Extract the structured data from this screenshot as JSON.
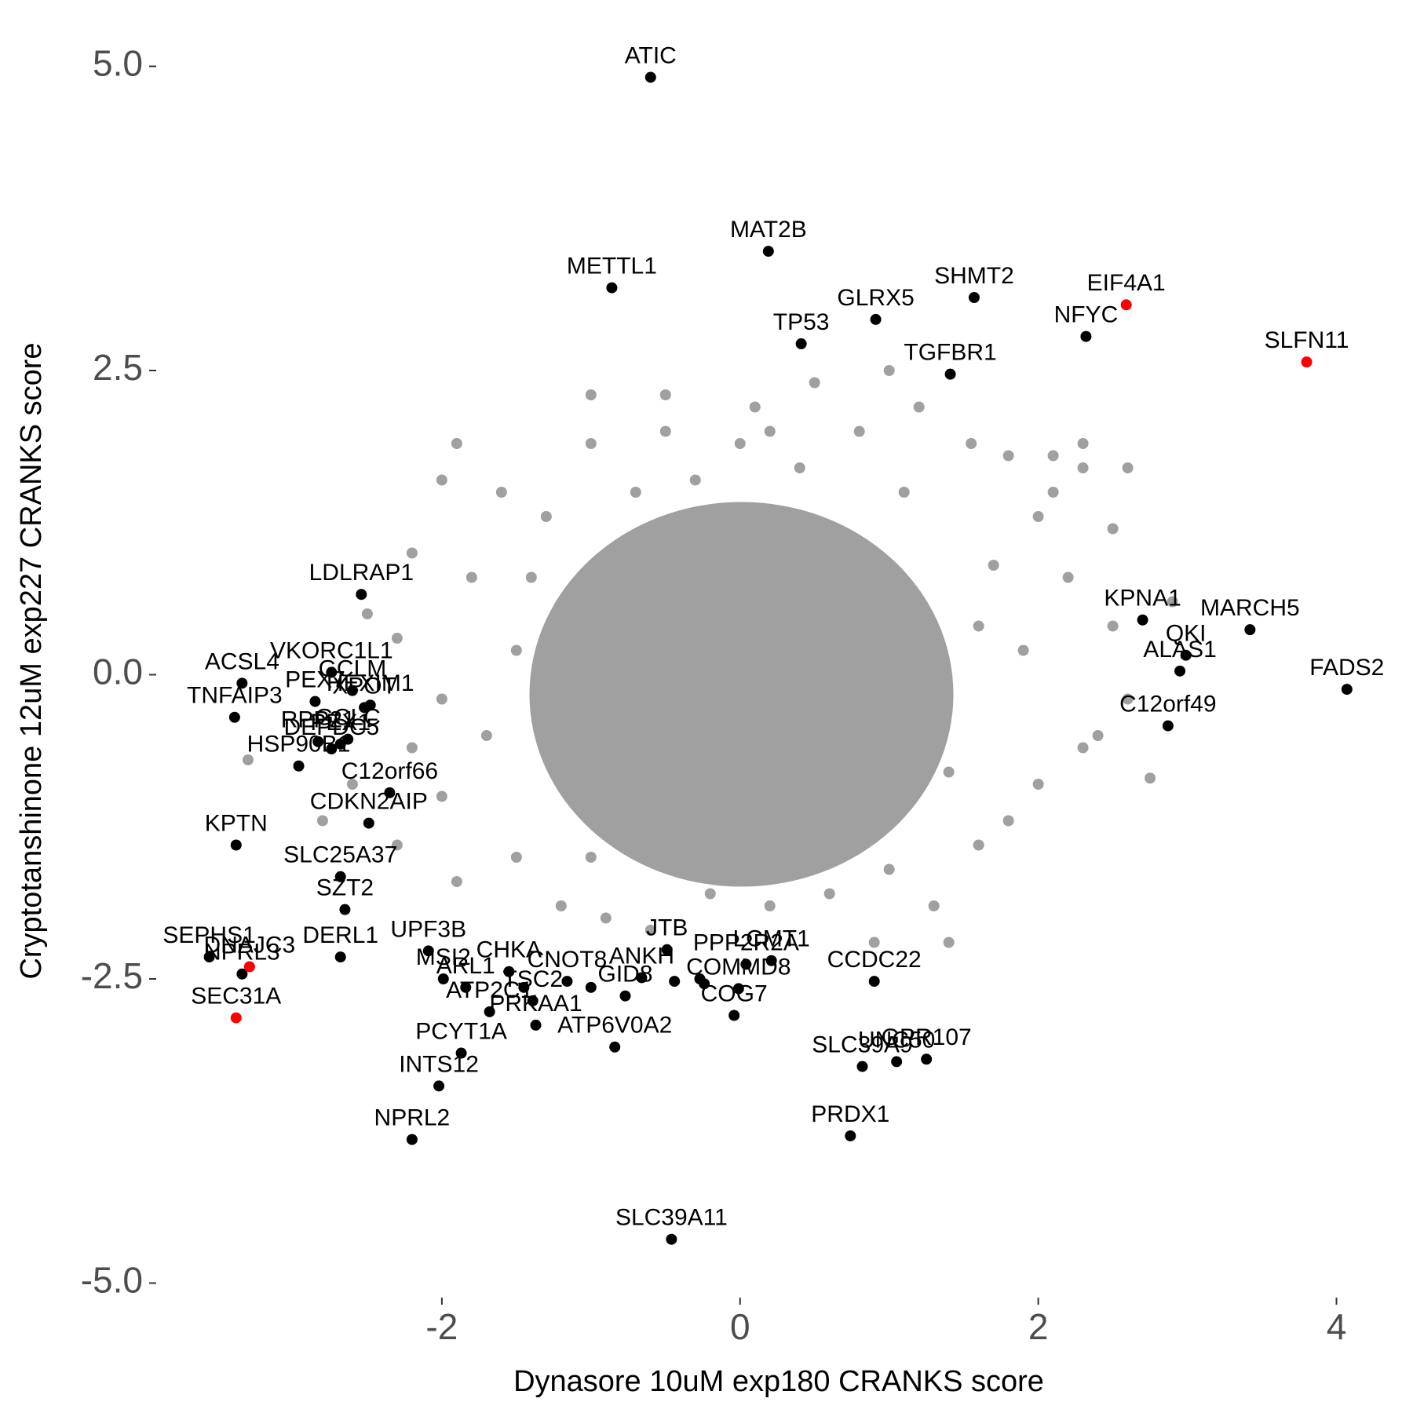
{
  "chart_data": {
    "type": "scatter",
    "x_label": "Dynasore 10uM exp180 CRANKS score",
    "y_label": "Cryptotanshinone 12uM exp227 CRANKS score",
    "xlim": [
      -3.9,
      4.15
    ],
    "ylim": [
      -5.1,
      5.1
    ],
    "xticks": [
      -2,
      0,
      2,
      4
    ],
    "yticks": [
      {
        "value": 5,
        "label": "5.0"
      },
      {
        "value": 2.5,
        "label": "2.5"
      },
      {
        "value": 0,
        "label": "0.0"
      },
      {
        "value": -2.5,
        "label": "-2.5"
      },
      {
        "value": -5,
        "label": "-5.0"
      }
    ],
    "grid": false,
    "series": [
      {
        "color": "#a0a0a0",
        "x": [
          -0.5,
          -1.0,
          -1.9,
          -1.0,
          -0.5,
          0.1,
          0.5,
          0.8,
          1.2,
          1.0,
          1.55,
          1.8,
          2.1,
          2.3,
          2.3,
          2.6,
          2.0,
          2.5,
          2.1,
          -2.0,
          -1.6,
          -1.3,
          -2.2,
          -1.8,
          -2.3,
          -2.5,
          -2.0,
          -2.2,
          -2.6,
          -2.3,
          -1.9,
          -1.5,
          -1.2,
          -0.9,
          -0.6,
          -0.2,
          0.2,
          0.6,
          0.9,
          1.3,
          1.4,
          1.6,
          1.8,
          2.0,
          2.3,
          2.4,
          2.9,
          2.75,
          2.6,
          2.5,
          2.2,
          1.9,
          -3.3,
          -2.8,
          -2.0,
          1.0,
          -1.4,
          1.7,
          0.0,
          -0.3,
          0.4,
          1.1,
          -1.0,
          0.5,
          -0.7,
          1.4,
          -1.7,
          1.6,
          -1.5,
          0.2
        ],
        "values": [
          2.3,
          2.3,
          1.9,
          1.9,
          2.0,
          2.2,
          2.4,
          2.0,
          2.2,
          2.5,
          1.9,
          1.8,
          1.8,
          1.9,
          1.7,
          1.7,
          1.3,
          1.2,
          1.5,
          1.6,
          1.5,
          1.3,
          1.0,
          0.8,
          0.3,
          0.5,
          -0.2,
          -0.6,
          -0.9,
          -1.4,
          -1.7,
          -1.5,
          -1.9,
          -2.0,
          -2.1,
          -1.8,
          -1.9,
          -1.8,
          -2.2,
          -1.9,
          -2.2,
          -1.4,
          -1.2,
          -0.9,
          -0.6,
          -0.5,
          0.6,
          -0.85,
          -0.2,
          0.4,
          0.8,
          0.2,
          -0.7,
          -1.2,
          -1.0,
          -1.6,
          0.8,
          0.9,
          1.9,
          1.6,
          1.7,
          1.5,
          -1.5,
          -1.4,
          1.5,
          -0.8,
          -0.5,
          0.4,
          0.2,
          2.0
        ]
      },
      {
        "color": "#000000",
        "labels": [
          "ATIC",
          "MAT2B",
          "METTL1",
          "GLRX5",
          "SHMT2",
          "NFYC",
          "TP53",
          "TGFBR1",
          "KPNA1",
          "MARCH5",
          "QKI",
          "ALAS1",
          "FADS2",
          "C12orf49",
          "LDLRAP1",
          "GCLM",
          "PEX7",
          "VKORC1L1",
          "ACSL4",
          "XPOT",
          "HEXIM1",
          "TNFAIP3",
          "GCLC",
          "HSP90B1",
          "RPP21",
          "DEPDC5",
          "PEX1",
          "C12orf66",
          "CDKN2AIP",
          "KPTN",
          "SLC25A37",
          "SZT2",
          "SEPHS1",
          "NPRL3",
          "DERL1",
          "UPF3B",
          "MSI2",
          "ARL1",
          "ATP2C1",
          "PCYT1A",
          "INTS12",
          "NPRL2",
          "CHKA",
          "CNOT8",
          "TSC2",
          "PRKAA1",
          "GID8",
          "JTB",
          "ANKH",
          "ATP6V0A2",
          "PPP2R2A",
          "LCMT1",
          "COMMD8",
          "COG7",
          "CCDC22",
          "SLC39A9",
          "GPR107",
          "UNC50",
          "PRDX1",
          "SLC39A11",
          null,
          null,
          null,
          null,
          null
        ],
        "x": [
          -0.6,
          0.19,
          -0.86,
          0.91,
          1.57,
          2.32,
          0.41,
          1.41,
          2.7,
          3.42,
          2.99,
          2.95,
          4.07,
          2.87,
          -2.54,
          -2.6,
          -2.85,
          -2.74,
          -3.34,
          -2.52,
          -2.48,
          -3.39,
          -2.63,
          -2.96,
          -2.83,
          -2.74,
          -2.68,
          -2.35,
          -2.49,
          -3.38,
          -2.68,
          -2.65,
          -3.56,
          -3.34,
          -2.68,
          -2.09,
          -1.99,
          -1.84,
          -1.68,
          -1.87,
          -2.02,
          -2.2,
          -1.55,
          -1.16,
          -1.39,
          -1.37,
          -0.77,
          -0.49,
          -0.66,
          -0.84,
          0.04,
          0.21,
          -0.01,
          -0.04,
          0.9,
          0.82,
          1.25,
          1.05,
          0.74,
          -0.46,
          -1.45,
          -1.0,
          -0.44,
          -0.27,
          -0.24
        ],
        "values": [
          4.91,
          3.48,
          3.18,
          2.92,
          3.1,
          2.78,
          2.72,
          2.47,
          0.45,
          0.37,
          0.16,
          0.03,
          -0.12,
          -0.42,
          0.66,
          -0.13,
          -0.22,
          0.02,
          -0.07,
          -0.27,
          -0.25,
          -0.35,
          -0.53,
          -0.75,
          -0.55,
          -0.61,
          -0.57,
          -0.97,
          -1.22,
          -1.4,
          -1.66,
          -1.93,
          -2.32,
          -2.46,
          -2.32,
          -2.27,
          -2.5,
          -2.57,
          -2.77,
          -3.11,
          -3.38,
          -3.82,
          -2.44,
          -2.52,
          -2.68,
          -2.88,
          -2.64,
          -2.26,
          -2.49,
          -3.06,
          -2.38,
          -2.35,
          -2.58,
          -2.8,
          -2.52,
          -3.22,
          -3.16,
          -3.18,
          -3.79,
          -4.64,
          -2.57,
          -2.57,
          -2.52,
          -2.5,
          -2.54
        ]
      },
      {
        "color": "#ff0000",
        "labels": [
          "EIF4A1",
          "SLFN11",
          "DNAJC3",
          "SEC31A"
        ],
        "x": [
          2.59,
          3.8,
          -3.29,
          -3.38
        ],
        "values": [
          3.04,
          2.57,
          -2.4,
          -2.82
        ]
      }
    ]
  }
}
